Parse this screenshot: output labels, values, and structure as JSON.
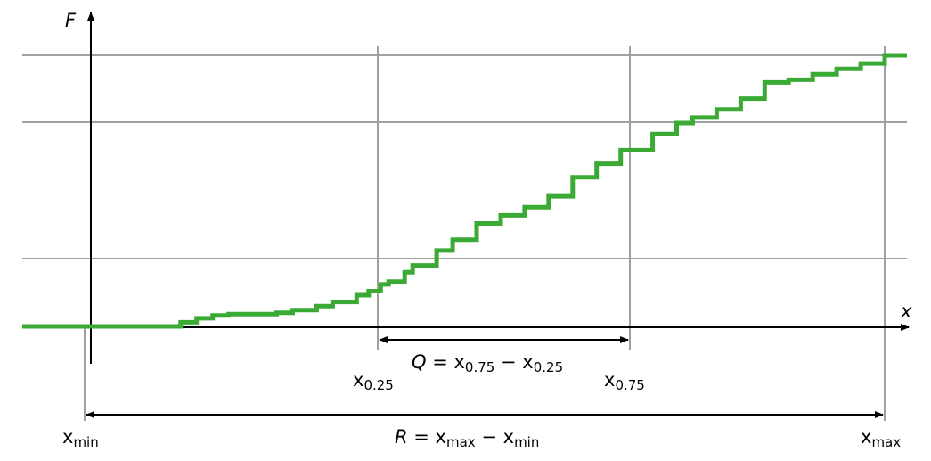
{
  "axes": {
    "y_label": "F",
    "x_label": "x"
  },
  "quantiles": {
    "q25": {
      "base": "x",
      "sub": "0.25"
    },
    "q75": {
      "base": "x",
      "sub": "0.75"
    },
    "min": {
      "base": "x",
      "sub": "min"
    },
    "max": {
      "base": "x",
      "sub": "max"
    }
  },
  "iqr_label": {
    "var": "Q",
    "eq": " = ",
    "a_base": "x",
    "a_sub": "0.75",
    "minus": " − ",
    "b_base": "x",
    "b_sub": "0.25"
  },
  "range_label": {
    "var": "R",
    "eq": " = ",
    "a_base": "x",
    "a_sub": "max",
    "minus": " − ",
    "b_base": "x",
    "b_sub": "min"
  },
  "colors": {
    "curve": "#3aaa35",
    "grid": "#a0a0a0",
    "axis": "#000000"
  },
  "chart_data": {
    "type": "line",
    "step": true,
    "description_ecdf": [
      [
        0.0,
        0.0
      ],
      [
        0.07,
        0.0
      ],
      [
        0.12,
        0.015
      ],
      [
        0.14,
        0.03
      ],
      [
        0.16,
        0.04
      ],
      [
        0.18,
        0.045
      ],
      [
        0.24,
        0.05
      ],
      [
        0.26,
        0.06
      ],
      [
        0.29,
        0.075
      ],
      [
        0.31,
        0.09
      ],
      [
        0.34,
        0.115
      ],
      [
        0.355,
        0.13
      ],
      [
        0.37,
        0.155
      ],
      [
        0.38,
        0.165
      ],
      [
        0.4,
        0.2
      ],
      [
        0.41,
        0.225
      ],
      [
        0.44,
        0.28
      ],
      [
        0.46,
        0.32
      ],
      [
        0.49,
        0.38
      ],
      [
        0.52,
        0.41
      ],
      [
        0.55,
        0.44
      ],
      [
        0.58,
        0.48
      ],
      [
        0.61,
        0.55
      ],
      [
        0.64,
        0.6
      ],
      [
        0.67,
        0.65
      ],
      [
        0.71,
        0.71
      ],
      [
        0.74,
        0.75
      ],
      [
        0.76,
        0.77
      ],
      [
        0.79,
        0.8
      ],
      [
        0.82,
        0.84
      ],
      [
        0.85,
        0.9
      ],
      [
        0.88,
        0.91
      ],
      [
        0.91,
        0.93
      ],
      [
        0.94,
        0.95
      ],
      [
        0.97,
        0.97
      ],
      [
        1.0,
        1.0
      ]
    ],
    "quantile_positions": {
      "min": 0.0,
      "q25": 0.35,
      "q75": 0.65,
      "max": 1.0
    },
    "horizontal_levels": [
      0.25,
      0.75,
      1.0
    ]
  }
}
